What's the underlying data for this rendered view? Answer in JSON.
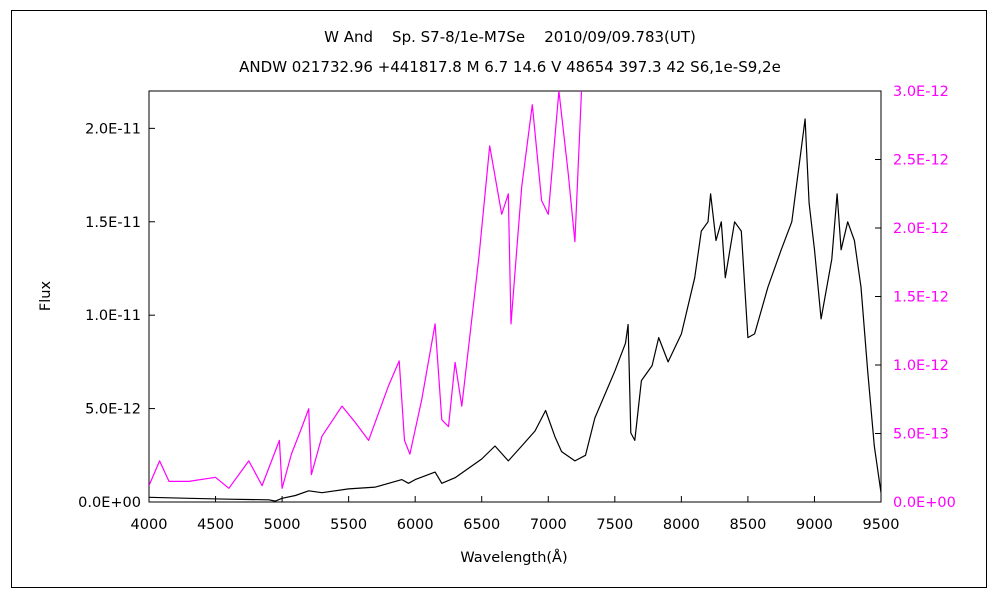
{
  "chart_data": {
    "type": "line",
    "title": "W And    Sp. S7-8/1e-M7Se    2010/09/09.783(UT)",
    "subtitle": "ANDW 021732.96 +441817.8 M 6.7 14.6 V 48654 397.3 42 S6,1e-S9,2e",
    "xlabel": "Wavelength(Å)",
    "ylabel": "Flux",
    "xlim": [
      4000,
      9500
    ],
    "ylim_left": [
      0,
      2.2e-11
    ],
    "ylim_right": [
      0,
      3e-12
    ],
    "x_ticks": [
      "4000",
      "4500",
      "5000",
      "5500",
      "6000",
      "6500",
      "7000",
      "7500",
      "8000",
      "8500",
      "9000",
      "9500"
    ],
    "left_ticks": [
      {
        "value": 0,
        "label": "0.0E+00"
      },
      {
        "value": 5e-12,
        "label": "5.0E-12"
      },
      {
        "value": 1e-11,
        "label": "1.0E-11"
      },
      {
        "value": 1.5e-11,
        "label": "1.5E-11"
      },
      {
        "value": 2e-11,
        "label": "2.0E-11"
      }
    ],
    "right_ticks": [
      {
        "value": 0,
        "label": "0.0E+00"
      },
      {
        "value": 5e-13,
        "label": "5.0E-13"
      },
      {
        "value": 1e-12,
        "label": "1.0E-12"
      },
      {
        "value": 1.5e-12,
        "label": "1.5E-12"
      },
      {
        "value": 2e-12,
        "label": "2.0E-12"
      },
      {
        "value": 2.5e-12,
        "label": "2.5E-12"
      },
      {
        "value": 3e-12,
        "label": "3.0E-12"
      }
    ],
    "grid": false,
    "series": [
      {
        "axis": "left",
        "color": "#000000",
        "points": [
          [
            4000,
            2.5e-13
          ],
          [
            4300,
            2e-13
          ],
          [
            4600,
            1.5e-13
          ],
          [
            4900,
            1.2e-13
          ],
          [
            4950,
            5e-14
          ],
          [
            5000,
            2e-13
          ],
          [
            5100,
            3.5e-13
          ],
          [
            5200,
            6e-13
          ],
          [
            5300,
            5e-13
          ],
          [
            5500,
            7e-13
          ],
          [
            5700,
            8e-13
          ],
          [
            5900,
            1.2e-12
          ],
          [
            5950,
            1e-12
          ],
          [
            6000,
            1.2e-12
          ],
          [
            6150,
            1.6e-12
          ],
          [
            6200,
            1e-12
          ],
          [
            6300,
            1.3e-12
          ],
          [
            6500,
            2.3e-12
          ],
          [
            6600,
            3e-12
          ],
          [
            6700,
            2.2e-12
          ],
          [
            6800,
            3e-12
          ],
          [
            6900,
            3.8e-12
          ],
          [
            6980,
            4.9e-12
          ],
          [
            7050,
            3.5e-12
          ],
          [
            7100,
            2.7e-12
          ],
          [
            7200,
            2.2e-12
          ],
          [
            7280,
            2.5e-12
          ],
          [
            7350,
            4.5e-12
          ],
          [
            7500,
            7e-12
          ],
          [
            7580,
            8.5e-12
          ],
          [
            7600,
            9.5e-12
          ],
          [
            7620,
            3.7e-12
          ],
          [
            7650,
            3.3e-12
          ],
          [
            7700,
            6.5e-12
          ],
          [
            7780,
            7.3e-12
          ],
          [
            7830,
            8.8e-12
          ],
          [
            7900,
            7.5e-12
          ],
          [
            8000,
            9e-12
          ],
          [
            8100,
            1.2e-11
          ],
          [
            8150,
            1.45e-11
          ],
          [
            8200,
            1.5e-11
          ],
          [
            8220,
            1.65e-11
          ],
          [
            8260,
            1.4e-11
          ],
          [
            8300,
            1.5e-11
          ],
          [
            8330,
            1.2e-11
          ],
          [
            8400,
            1.5e-11
          ],
          [
            8450,
            1.45e-11
          ],
          [
            8500,
            8.8e-12
          ],
          [
            8550,
            9e-12
          ],
          [
            8650,
            1.15e-11
          ],
          [
            8750,
            1.35e-11
          ],
          [
            8830,
            1.5e-11
          ],
          [
            8930,
            2.05e-11
          ],
          [
            8960,
            1.6e-11
          ],
          [
            9000,
            1.35e-11
          ],
          [
            9050,
            9.8e-12
          ],
          [
            9130,
            1.3e-11
          ],
          [
            9170,
            1.65e-11
          ],
          [
            9200,
            1.35e-11
          ],
          [
            9250,
            1.5e-11
          ],
          [
            9300,
            1.4e-11
          ],
          [
            9350,
            1.15e-11
          ],
          [
            9400,
            7e-12
          ],
          [
            9450,
            3e-12
          ],
          [
            9500,
            5e-13
          ]
        ]
      },
      {
        "axis": "right",
        "color": "#ff00ff",
        "points": [
          [
            4000,
            1.2e-13
          ],
          [
            4080,
            3e-13
          ],
          [
            4150,
            1.5e-13
          ],
          [
            4300,
            1.5e-13
          ],
          [
            4500,
            1.8e-13
          ],
          [
            4600,
            1e-13
          ],
          [
            4750,
            3e-13
          ],
          [
            4850,
            1.2e-13
          ],
          [
            4980,
            4.5e-13
          ],
          [
            5000,
            1e-13
          ],
          [
            5070,
            3.5e-13
          ],
          [
            5150,
            5.5e-13
          ],
          [
            5200,
            6.8e-13
          ],
          [
            5220,
            2e-13
          ],
          [
            5300,
            4.8e-13
          ],
          [
            5450,
            7e-13
          ],
          [
            5550,
            5.8e-13
          ],
          [
            5650,
            4.5e-13
          ],
          [
            5800,
            8.5e-13
          ],
          [
            5880,
            1.03e-12
          ],
          [
            5920,
            4.5e-13
          ],
          [
            5960,
            3.5e-13
          ],
          [
            6050,
            7.5e-13
          ],
          [
            6150,
            1.3e-12
          ],
          [
            6200,
            6e-13
          ],
          [
            6250,
            5.5e-13
          ],
          [
            6300,
            1.02e-12
          ],
          [
            6350,
            7e-13
          ],
          [
            6480,
            1.8e-12
          ],
          [
            6560,
            2.6e-12
          ],
          [
            6650,
            2.1e-12
          ],
          [
            6700,
            2.25e-12
          ],
          [
            6720,
            1.3e-12
          ],
          [
            6760,
            1.8e-12
          ],
          [
            6800,
            2.3e-12
          ],
          [
            6880,
            2.9e-12
          ],
          [
            6950,
            2.2e-12
          ],
          [
            7000,
            2.1e-12
          ],
          [
            7080,
            3e-12
          ],
          [
            7150,
            2.4e-12
          ],
          [
            7200,
            1.9e-12
          ],
          [
            7250,
            3e-12
          ]
        ]
      }
    ]
  }
}
